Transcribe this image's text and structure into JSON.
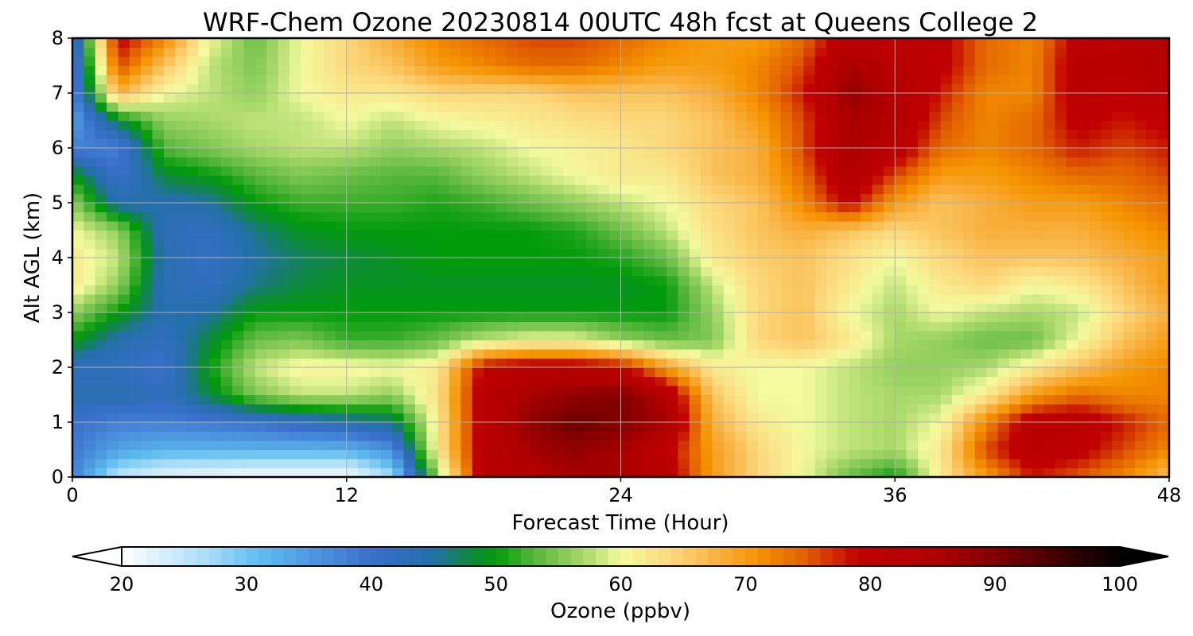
{
  "chart_data": {
    "type": "heatmap",
    "title": "WRF-Chem Ozone  20230814 00UTC 48h fcst at Queens College 2",
    "xlabel": "Forecast Time (Hour)",
    "ylabel": "Alt AGL (km)",
    "xlim": [
      0,
      48
    ],
    "ylim": [
      0,
      8
    ],
    "x_ticks": [
      "0",
      "12",
      "24",
      "36",
      "48"
    ],
    "y_ticks": [
      "0",
      "1",
      "2",
      "3",
      "4",
      "5",
      "6",
      "7",
      "8"
    ],
    "grid": true,
    "colorbar": {
      "label": "Ozone  (ppbv)",
      "range": [
        20,
        100
      ],
      "ticks": [
        "20",
        "30",
        "40",
        "50",
        "60",
        "70",
        "80",
        "90",
        "100"
      ],
      "extend": "both",
      "colors": [
        {
          "v": 20,
          "c": "#ffffff"
        },
        {
          "v": 27,
          "c": "#a8dcf8"
        },
        {
          "v": 31,
          "c": "#5fbdf0"
        },
        {
          "v": 40,
          "c": "#3a6fcb"
        },
        {
          "v": 45,
          "c": "#236fa8"
        },
        {
          "v": 48,
          "c": "#0e8a3c"
        },
        {
          "v": 50,
          "c": "#029b0a"
        },
        {
          "v": 53,
          "c": "#56b63c"
        },
        {
          "v": 57,
          "c": "#a7d868"
        },
        {
          "v": 60,
          "c": "#f4fa9e"
        },
        {
          "v": 64,
          "c": "#fcd87c"
        },
        {
          "v": 68,
          "c": "#f8ae3c"
        },
        {
          "v": 71,
          "c": "#f59400"
        },
        {
          "v": 75,
          "c": "#e05d00"
        },
        {
          "v": 79,
          "c": "#c00000"
        },
        {
          "v": 85,
          "c": "#b00000"
        },
        {
          "v": 90,
          "c": "#800000"
        },
        {
          "v": 95,
          "c": "#400000"
        },
        {
          "v": 100,
          "c": "#000000"
        }
      ]
    },
    "x": [
      0,
      2,
      4,
      6,
      8,
      10,
      12,
      14,
      16,
      18,
      20,
      22,
      24,
      26,
      28,
      30,
      32,
      34,
      36,
      38,
      40,
      42,
      44,
      46,
      48
    ],
    "y": [
      0,
      0.5,
      1,
      1.5,
      2,
      2.5,
      3,
      3.5,
      4,
      4.5,
      5,
      5.5,
      6,
      6.5,
      7,
      7.5,
      8
    ],
    "values": [
      [
        38,
        25,
        22,
        21,
        20,
        20,
        20,
        27,
        56,
        82,
        84,
        86,
        86,
        82,
        70,
        64,
        60,
        54,
        50,
        62,
        70,
        78,
        75,
        72,
        66
      ],
      [
        39,
        34,
        32,
        32,
        32,
        32,
        32,
        36,
        62,
        82,
        86,
        88,
        86,
        80,
        70,
        64,
        60,
        58,
        57,
        62,
        76,
        82,
        80,
        76,
        72
      ],
      [
        40,
        38,
        38,
        39,
        40,
        42,
        44,
        46,
        62,
        82,
        88,
        92,
        90,
        86,
        68,
        62,
        60,
        58,
        57,
        60,
        72,
        82,
        82,
        78,
        74
      ],
      [
        44,
        44,
        42,
        48,
        55,
        58,
        58,
        56,
        63,
        82,
        86,
        88,
        90,
        84,
        66,
        60,
        60,
        58,
        57,
        57,
        62,
        70,
        74,
        72,
        72
      ],
      [
        42,
        42,
        40,
        50,
        58,
        61,
        61,
        60,
        62,
        80,
        82,
        82,
        80,
        70,
        62,
        60,
        60,
        58,
        56,
        56,
        57,
        62,
        66,
        70,
        72
      ],
      [
        50,
        44,
        42,
        48,
        54,
        55,
        52,
        52,
        54,
        58,
        60,
        60,
        56,
        54,
        55,
        64,
        66,
        62,
        57,
        56,
        54,
        54,
        60,
        66,
        70
      ],
      [
        56,
        50,
        44,
        45,
        50,
        50,
        50,
        50,
        50,
        50,
        50,
        50,
        50,
        50,
        56,
        64,
        66,
        60,
        57,
        60,
        58,
        57,
        58,
        64,
        68
      ],
      [
        62,
        56,
        43,
        42,
        46,
        48,
        49,
        49,
        49,
        49,
        49,
        49,
        49,
        50,
        58,
        64,
        66,
        62,
        58,
        62,
        64,
        60,
        62,
        66,
        70
      ],
      [
        62,
        58,
        44,
        41,
        45,
        47,
        48,
        49,
        50,
        50,
        50,
        50,
        51,
        54,
        62,
        65,
        66,
        63,
        60,
        64,
        66,
        66,
        66,
        68,
        70
      ],
      [
        60,
        56,
        43,
        42,
        46,
        49,
        50,
        50,
        50,
        50,
        50,
        51,
        54,
        58,
        63,
        66,
        68,
        66,
        64,
        66,
        68,
        68,
        68,
        70,
        72
      ],
      [
        56,
        44,
        44,
        45,
        50,
        52,
        52,
        52,
        51,
        52,
        54,
        56,
        58,
        60,
        64,
        66,
        72,
        80,
        70,
        66,
        68,
        70,
        70,
        72,
        74
      ],
      [
        50,
        40,
        48,
        50,
        53,
        55,
        54,
        53,
        53,
        56,
        58,
        60,
        62,
        62,
        66,
        68,
        74,
        84,
        76,
        70,
        70,
        72,
        74,
        74,
        76
      ],
      [
        38,
        38,
        53,
        55,
        57,
        58,
        58,
        56,
        57,
        58,
        60,
        61,
        62,
        64,
        66,
        68,
        76,
        86,
        82,
        74,
        72,
        74,
        78,
        76,
        78
      ],
      [
        34,
        48,
        56,
        57,
        58,
        58,
        60,
        58,
        60,
        61,
        62,
        63,
        64,
        64,
        66,
        70,
        76,
        86,
        84,
        76,
        72,
        74,
        80,
        78,
        80
      ],
      [
        36,
        68,
        60,
        58,
        56,
        60,
        62,
        62,
        64,
        64,
        64,
        66,
        66,
        66,
        68,
        72,
        78,
        88,
        84,
        78,
        72,
        72,
        82,
        80,
        82
      ],
      [
        36,
        76,
        66,
        58,
        55,
        60,
        64,
        66,
        70,
        72,
        74,
        74,
        72,
        70,
        70,
        72,
        76,
        86,
        82,
        80,
        74,
        72,
        82,
        82,
        84
      ],
      [
        38,
        80,
        72,
        60,
        54,
        60,
        64,
        68,
        72,
        74,
        76,
        76,
        74,
        72,
        70,
        70,
        74,
        82,
        80,
        80,
        74,
        72,
        80,
        82,
        84
      ]
    ]
  }
}
